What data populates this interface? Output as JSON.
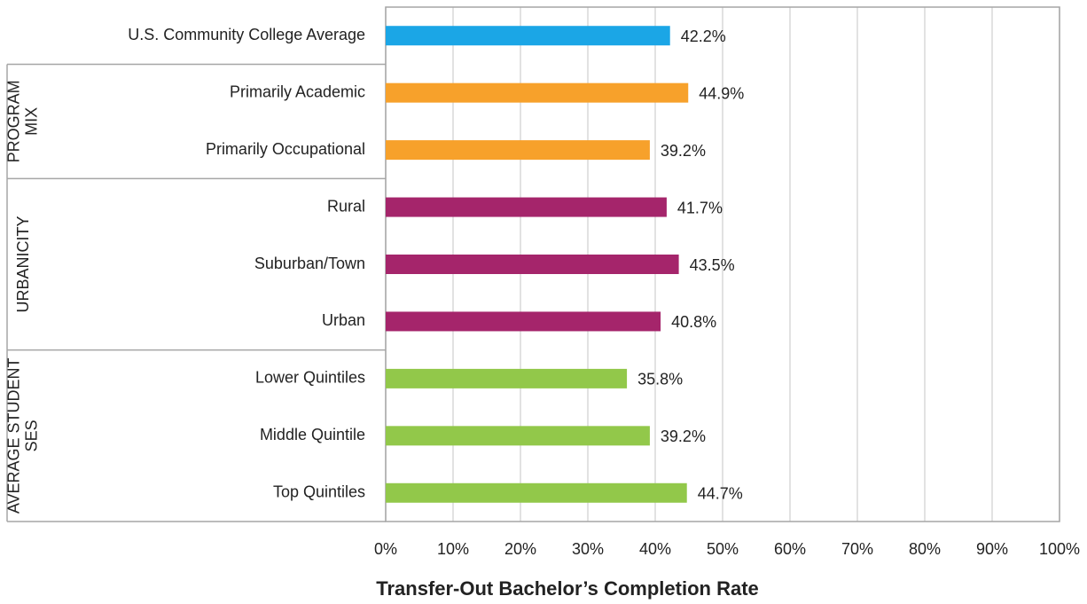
{
  "chart_data": {
    "type": "bar",
    "orientation": "horizontal",
    "x_label": "Transfer-Out Bachelor’s Completion Rate",
    "xlim": [
      0,
      100
    ],
    "xticks": [
      {
        "value": 0,
        "label": "0%"
      },
      {
        "value": 10,
        "label": "10%"
      },
      {
        "value": 20,
        "label": "20%"
      },
      {
        "value": 30,
        "label": "30%"
      },
      {
        "value": 40,
        "label": "40%"
      },
      {
        "value": 50,
        "label": "50%"
      },
      {
        "value": 60,
        "label": "60%"
      },
      {
        "value": 70,
        "label": "70%"
      },
      {
        "value": 80,
        "label": "80%"
      },
      {
        "value": 90,
        "label": "90%"
      },
      {
        "value": 100,
        "label": "100%"
      }
    ],
    "grid": true,
    "groups": [
      {
        "color": "#1ba6e6",
        "categories": [
          "U.S. Community College Average"
        ],
        "values": [
          42.2
        ],
        "value_labels": [
          "42.2%"
        ]
      },
      {
        "label": [
          "PROGRAM",
          "MIX"
        ],
        "color": "#f7a12b",
        "categories": [
          "Primarily Academic",
          "Primarily Occupational"
        ],
        "values": [
          44.9,
          39.2
        ],
        "value_labels": [
          "44.9%",
          "39.2%"
        ]
      },
      {
        "label": [
          "URBANICITY"
        ],
        "color": "#a5256b",
        "categories": [
          "Rural",
          "Suburban/Town",
          "Urban"
        ],
        "values": [
          41.7,
          43.5,
          40.8
        ],
        "value_labels": [
          "41.7%",
          "43.5%",
          "40.8%"
        ]
      },
      {
        "label": [
          "AVERAGE STUDENT",
          "SES"
        ],
        "color": "#92c84a",
        "categories": [
          "Lower Quintiles",
          "Middle Quintile",
          "Top Quintiles"
        ],
        "values": [
          35.8,
          39.2,
          44.7
        ],
        "value_labels": [
          "35.8%",
          "39.2%",
          "44.7%"
        ]
      }
    ]
  }
}
